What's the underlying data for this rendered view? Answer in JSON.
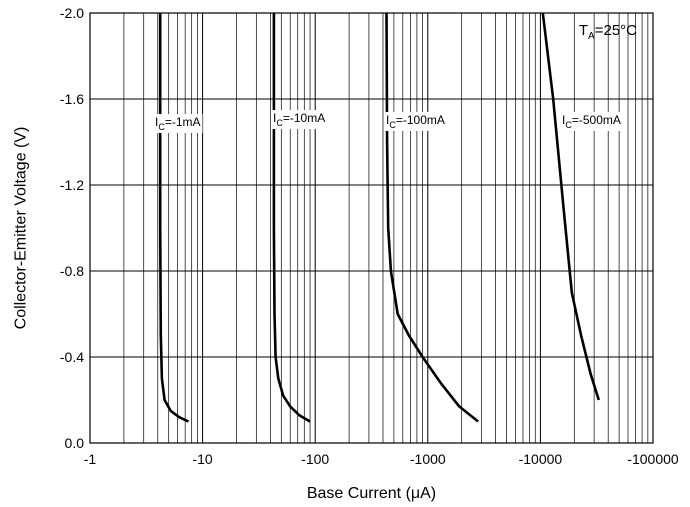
{
  "chart_data": {
    "type": "line",
    "xlabel": "Base Current (μA)",
    "ylabel": "Collector-Emitter Voltage (V)",
    "x_scale": "log",
    "xlim": [
      -1,
      -100000
    ],
    "ylim": [
      0.0,
      -2.0
    ],
    "x_ticks": [
      {
        "value": -1,
        "label": "-1"
      },
      {
        "value": -10,
        "label": "-10"
      },
      {
        "value": -100,
        "label": "-100"
      },
      {
        "value": -1000,
        "label": "-1000"
      },
      {
        "value": -10000,
        "label": "-10000"
      },
      {
        "value": -100000,
        "label": "-100000"
      }
    ],
    "y_ticks": [
      {
        "value": 0.0,
        "label": "0.0"
      },
      {
        "value": -0.4,
        "label": "-0.4"
      },
      {
        "value": -0.8,
        "label": "-0.8"
      },
      {
        "value": -1.2,
        "label": "-1.2"
      },
      {
        "value": -1.6,
        "label": "-1.6"
      },
      {
        "value": -2.0,
        "label": "-2.0"
      }
    ],
    "grid": true,
    "annotation": {
      "main": "T",
      "sub": "A",
      "tail": "=25°C"
    },
    "series": [
      {
        "label_main": "I",
        "label_sub": "C",
        "label_tail": "=-1mA",
        "x": [
          -4.2,
          -4.2,
          -4.25,
          -4.35,
          -4.6,
          -5.2,
          -6.2,
          -7.5
        ],
        "y": [
          -2.0,
          -1.0,
          -0.5,
          -0.3,
          -0.2,
          -0.15,
          -0.12,
          -0.1
        ]
      },
      {
        "label_main": "I",
        "label_sub": "C",
        "label_tail": "=-10mA",
        "x": [
          -43,
          -43,
          -43.5,
          -44.5,
          -47,
          -52,
          -60,
          -72,
          -90
        ],
        "y": [
          -2.0,
          -1.0,
          -0.6,
          -0.4,
          -0.3,
          -0.22,
          -0.17,
          -0.13,
          -0.1
        ]
      },
      {
        "label_main": "I",
        "label_sub": "C",
        "label_tail": "=-100mA",
        "x": [
          -430,
          -435,
          -445,
          -470,
          -540,
          -680,
          -900,
          -1300,
          -1900,
          -2800
        ],
        "y": [
          -2.0,
          -1.4,
          -1.0,
          -0.8,
          -0.6,
          -0.5,
          -0.4,
          -0.28,
          -0.17,
          -0.1
        ]
      },
      {
        "label_main": "I",
        "label_sub": "C",
        "label_tail": "=-500mA",
        "x": [
          -10500,
          -13000,
          -16000,
          -19000,
          -23000,
          -28000,
          -33000
        ],
        "y": [
          -2.0,
          -1.6,
          -1.1,
          -0.7,
          -0.5,
          -0.32,
          -0.2
        ]
      }
    ]
  }
}
